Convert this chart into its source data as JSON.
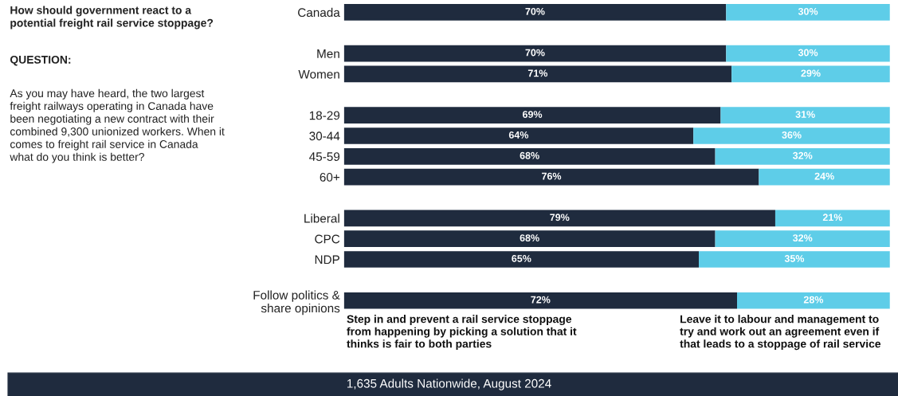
{
  "chart_data": {
    "type": "bar",
    "orientation": "horizontal",
    "stacked": true,
    "title": "How should government react to a potential freight rail service stoppage?",
    "annotations": [
      "QUESTION:",
      "As you may have heard, the two largest freight railways operating in Canada have been negotiating a new contract with their combined 9,300 unionized workers. When it comes to freight rail service in Canada what do you think is better?",
      "1,635 Adults Nationwide, August 2024"
    ],
    "categories": [
      "Canada",
      null,
      "Men",
      "Women",
      null,
      "18-29",
      "30-44",
      "45-59",
      "60+",
      null,
      "Liberal",
      "CPC",
      "NDP",
      null,
      "Follow politics & share opinions"
    ],
    "series": [
      {
        "name": "Step in and prevent a rail service stoppage from happening by picking a solution that it thinks is fair to both parties",
        "color": "#1f2b3e",
        "values": [
          70,
          null,
          70,
          71,
          null,
          69,
          64,
          68,
          76,
          null,
          79,
          68,
          65,
          null,
          72
        ],
        "value_labels": [
          "70%",
          null,
          "70%",
          "71%",
          null,
          "69%",
          "64%",
          "68%",
          "76%",
          null,
          "79%",
          "68%",
          "65%",
          null,
          "72%"
        ]
      },
      {
        "name": "Leave it to labour and management to try and work out an agreement even if that leads to a stoppage of rail service",
        "color": "#5ecde8",
        "values": [
          30,
          null,
          30,
          29,
          null,
          31,
          36,
          32,
          24,
          null,
          21,
          32,
          35,
          null,
          28
        ],
        "value_labels": [
          "30%",
          null,
          "30%",
          "29%",
          null,
          "31%",
          "36%",
          "32%",
          "24%",
          null,
          "21%",
          "32%",
          "35%",
          null,
          "28%"
        ]
      }
    ],
    "xlim": [
      0,
      100
    ],
    "tick_labels": "y",
    "grid": false,
    "legend": "bottom"
  }
}
